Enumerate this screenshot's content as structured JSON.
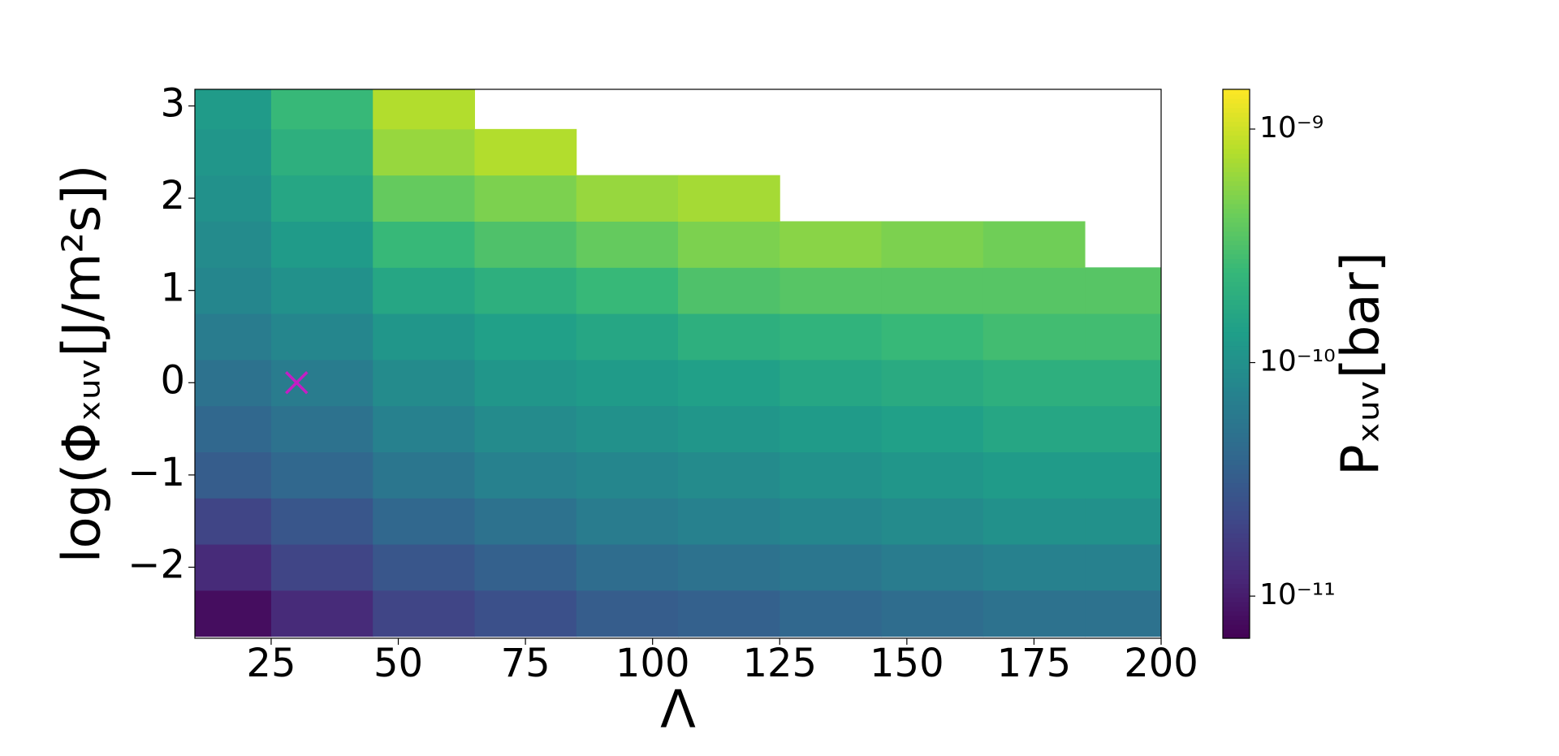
{
  "chart_data": {
    "type": "heatmap",
    "xlabel": "Λ",
    "ylabel": "log(Φₓᵤᵥ[J/m²s])",
    "colorbar_label": "Pₓᵤᵥ[bar]",
    "colormap": "viridis",
    "colorbar_scale": "log",
    "clim": [
      6.6e-12,
      1.48e-09
    ],
    "colorbar_ticks": [
      {
        "value": 1e-09,
        "label": "10⁻⁹"
      },
      {
        "value": 1e-10,
        "label": "10⁻¹⁰"
      },
      {
        "value": 1e-11,
        "label": "10⁻¹¹"
      }
    ],
    "xlim": [
      10,
      200
    ],
    "ylim": [
      -2.77,
      3.18
    ],
    "xticks": [
      25,
      50,
      75,
      100,
      125,
      150,
      175,
      200
    ],
    "yticks": [
      {
        "value": -2,
        "label": "−2"
      },
      {
        "value": -1,
        "label": "−1"
      },
      0,
      1,
      2,
      3
    ],
    "x": [
      15,
      35,
      55,
      75,
      95,
      115,
      135,
      155,
      175,
      195
    ],
    "y": [
      -2.5,
      -2,
      -1.5,
      -1,
      -0.5,
      0,
      0.5,
      1,
      1.5,
      2,
      2.5,
      3
    ],
    "values": [
      [
        7.9e-12,
        1.26e-11,
        2e-11,
        2.5e-11,
        3.2e-11,
        3.5e-11,
        4e-11,
        4.5e-11,
        5e-11,
        5e-11
      ],
      [
        1.26e-11,
        2e-11,
        2.8e-11,
        3.5e-11,
        4.5e-11,
        5e-11,
        5.6e-11,
        6.3e-11,
        7.1e-11,
        7.1e-11
      ],
      [
        2e-11,
        2.8e-11,
        4e-11,
        5e-11,
        6.3e-11,
        7.1e-11,
        7.9e-11,
        8.9e-11,
        1e-10,
        1e-10
      ],
      [
        3.2e-11,
        4e-11,
        5.6e-11,
        7.1e-11,
        7.9e-11,
        8.9e-11,
        1e-10,
        1.12e-10,
        1.26e-10,
        1.26e-10
      ],
      [
        4e-11,
        5e-11,
        7.1e-11,
        8.9e-11,
        1e-10,
        1.12e-10,
        1.26e-10,
        1.4e-10,
        1.6e-10,
        1.6e-10
      ],
      [
        5e-11,
        6.3e-11,
        8.9e-11,
        1.12e-10,
        1.26e-10,
        1.4e-10,
        1.6e-10,
        1.8e-10,
        2e-10,
        2e-10
      ],
      [
        6.3e-11,
        7.9e-11,
        1.12e-10,
        1.4e-10,
        1.6e-10,
        2e-10,
        2.2e-10,
        2.5e-10,
        2.8e-10,
        2.8e-10
      ],
      [
        7.9e-11,
        1e-10,
        1.6e-10,
        2e-10,
        2.5e-10,
        3.2e-10,
        3.5e-10,
        3.5e-10,
        3.5e-10,
        3.5e-10
      ],
      [
        8.9e-11,
        1.26e-10,
        2.5e-10,
        3.2e-10,
        4e-10,
        5e-10,
        5.6e-10,
        5e-10,
        4.5e-10,
        null
      ],
      [
        1e-10,
        1.6e-10,
        4e-10,
        5e-10,
        6.3e-10,
        7.1e-10,
        null,
        null,
        null,
        null
      ],
      [
        1.12e-10,
        2e-10,
        6.3e-10,
        7.9e-10,
        null,
        null,
        null,
        null,
        null,
        null
      ],
      [
        1.26e-10,
        2.5e-10,
        7.9e-10,
        null,
        null,
        null,
        null,
        null,
        null,
        null
      ]
    ],
    "marker": {
      "x": 30,
      "y": 0,
      "color": "#c41ec4"
    }
  }
}
